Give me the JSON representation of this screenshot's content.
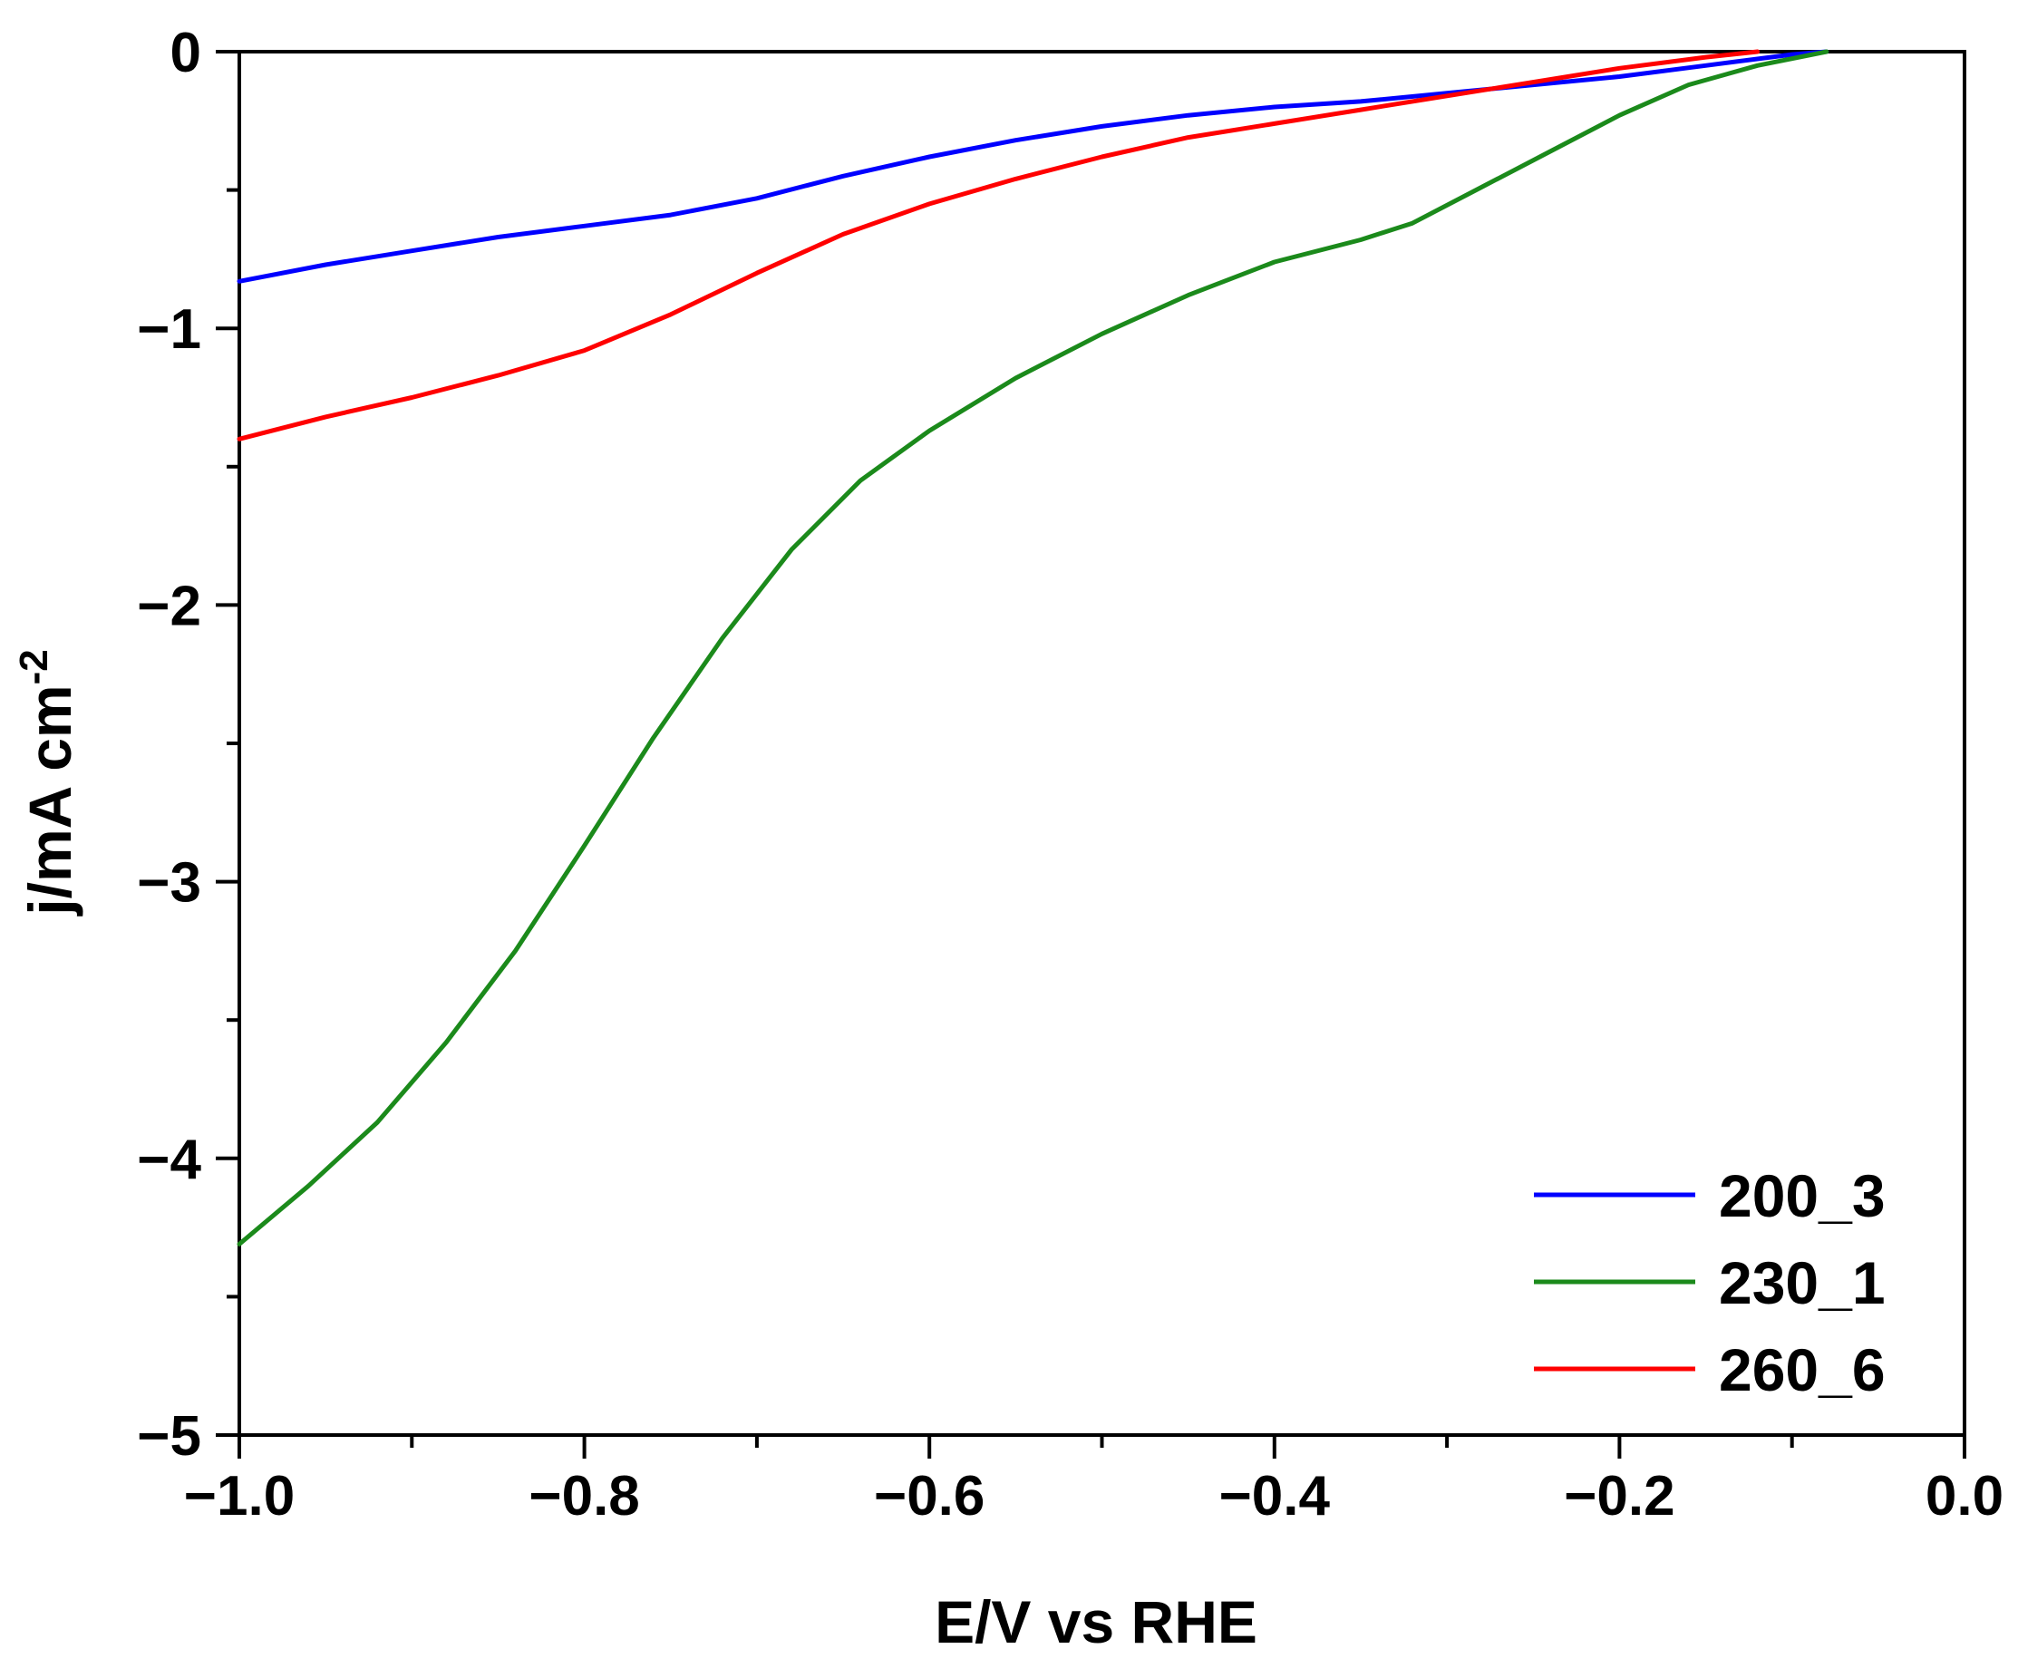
{
  "chart_data": {
    "type": "line",
    "title": "",
    "xlabel": "E/V vs RHE",
    "ylabel_main": "j/mA cm",
    "ylabel_sup": "-2",
    "xlim": [
      -1.0,
      0.0
    ],
    "ylim": [
      -5,
      0
    ],
    "x_ticks": [
      -1.0,
      -0.8,
      -0.6,
      -0.4,
      -0.2,
      0.0
    ],
    "x_tick_labels": [
      "−1.0",
      "−0.8",
      "−0.6",
      "−0.4",
      "−0.2",
      "0.0"
    ],
    "y_ticks": [
      0,
      -1,
      -2,
      -3,
      -4,
      -5
    ],
    "y_tick_labels": [
      "0",
      "−1",
      "−2",
      "−3",
      "−4",
      "−5"
    ],
    "grid": false,
    "legend_position": "bottom-right",
    "series": [
      {
        "name": "200_3",
        "color": "#0000ff",
        "x": [
          -1.0,
          -0.95,
          -0.9,
          -0.85,
          -0.8,
          -0.75,
          -0.7,
          -0.65,
          -0.6,
          -0.55,
          -0.5,
          -0.45,
          -0.4,
          -0.35,
          -0.3,
          -0.25,
          -0.2,
          -0.15,
          -0.1,
          -0.08
        ],
        "y": [
          -0.83,
          -0.77,
          -0.72,
          -0.67,
          -0.63,
          -0.59,
          -0.53,
          -0.45,
          -0.38,
          -0.32,
          -0.27,
          -0.23,
          -0.2,
          -0.18,
          -0.15,
          -0.12,
          -0.09,
          -0.05,
          -0.01,
          0.0
        ]
      },
      {
        "name": "230_1",
        "color": "#1b8a1b",
        "x": [
          -1.0,
          -0.96,
          -0.92,
          -0.88,
          -0.84,
          -0.8,
          -0.76,
          -0.72,
          -0.68,
          -0.64,
          -0.6,
          -0.55,
          -0.5,
          -0.45,
          -0.4,
          -0.35,
          -0.32,
          -0.28,
          -0.24,
          -0.2,
          -0.16,
          -0.12,
          -0.08
        ],
        "y": [
          -4.31,
          -4.1,
          -3.87,
          -3.58,
          -3.25,
          -2.87,
          -2.48,
          -2.12,
          -1.8,
          -1.55,
          -1.37,
          -1.18,
          -1.02,
          -0.88,
          -0.76,
          -0.68,
          -0.62,
          -0.49,
          -0.36,
          -0.23,
          -0.12,
          -0.05,
          0.0
        ]
      },
      {
        "name": "260_6",
        "color": "#ff0000",
        "x": [
          -1.0,
          -0.95,
          -0.9,
          -0.85,
          -0.8,
          -0.75,
          -0.7,
          -0.65,
          -0.6,
          -0.55,
          -0.5,
          -0.45,
          -0.4,
          -0.35,
          -0.3,
          -0.25,
          -0.2,
          -0.15,
          -0.12
        ],
        "y": [
          -1.4,
          -1.32,
          -1.25,
          -1.17,
          -1.08,
          -0.95,
          -0.8,
          -0.66,
          -0.55,
          -0.46,
          -0.38,
          -0.31,
          -0.26,
          -0.21,
          -0.16,
          -0.11,
          -0.06,
          -0.02,
          0.0
        ]
      }
    ]
  }
}
